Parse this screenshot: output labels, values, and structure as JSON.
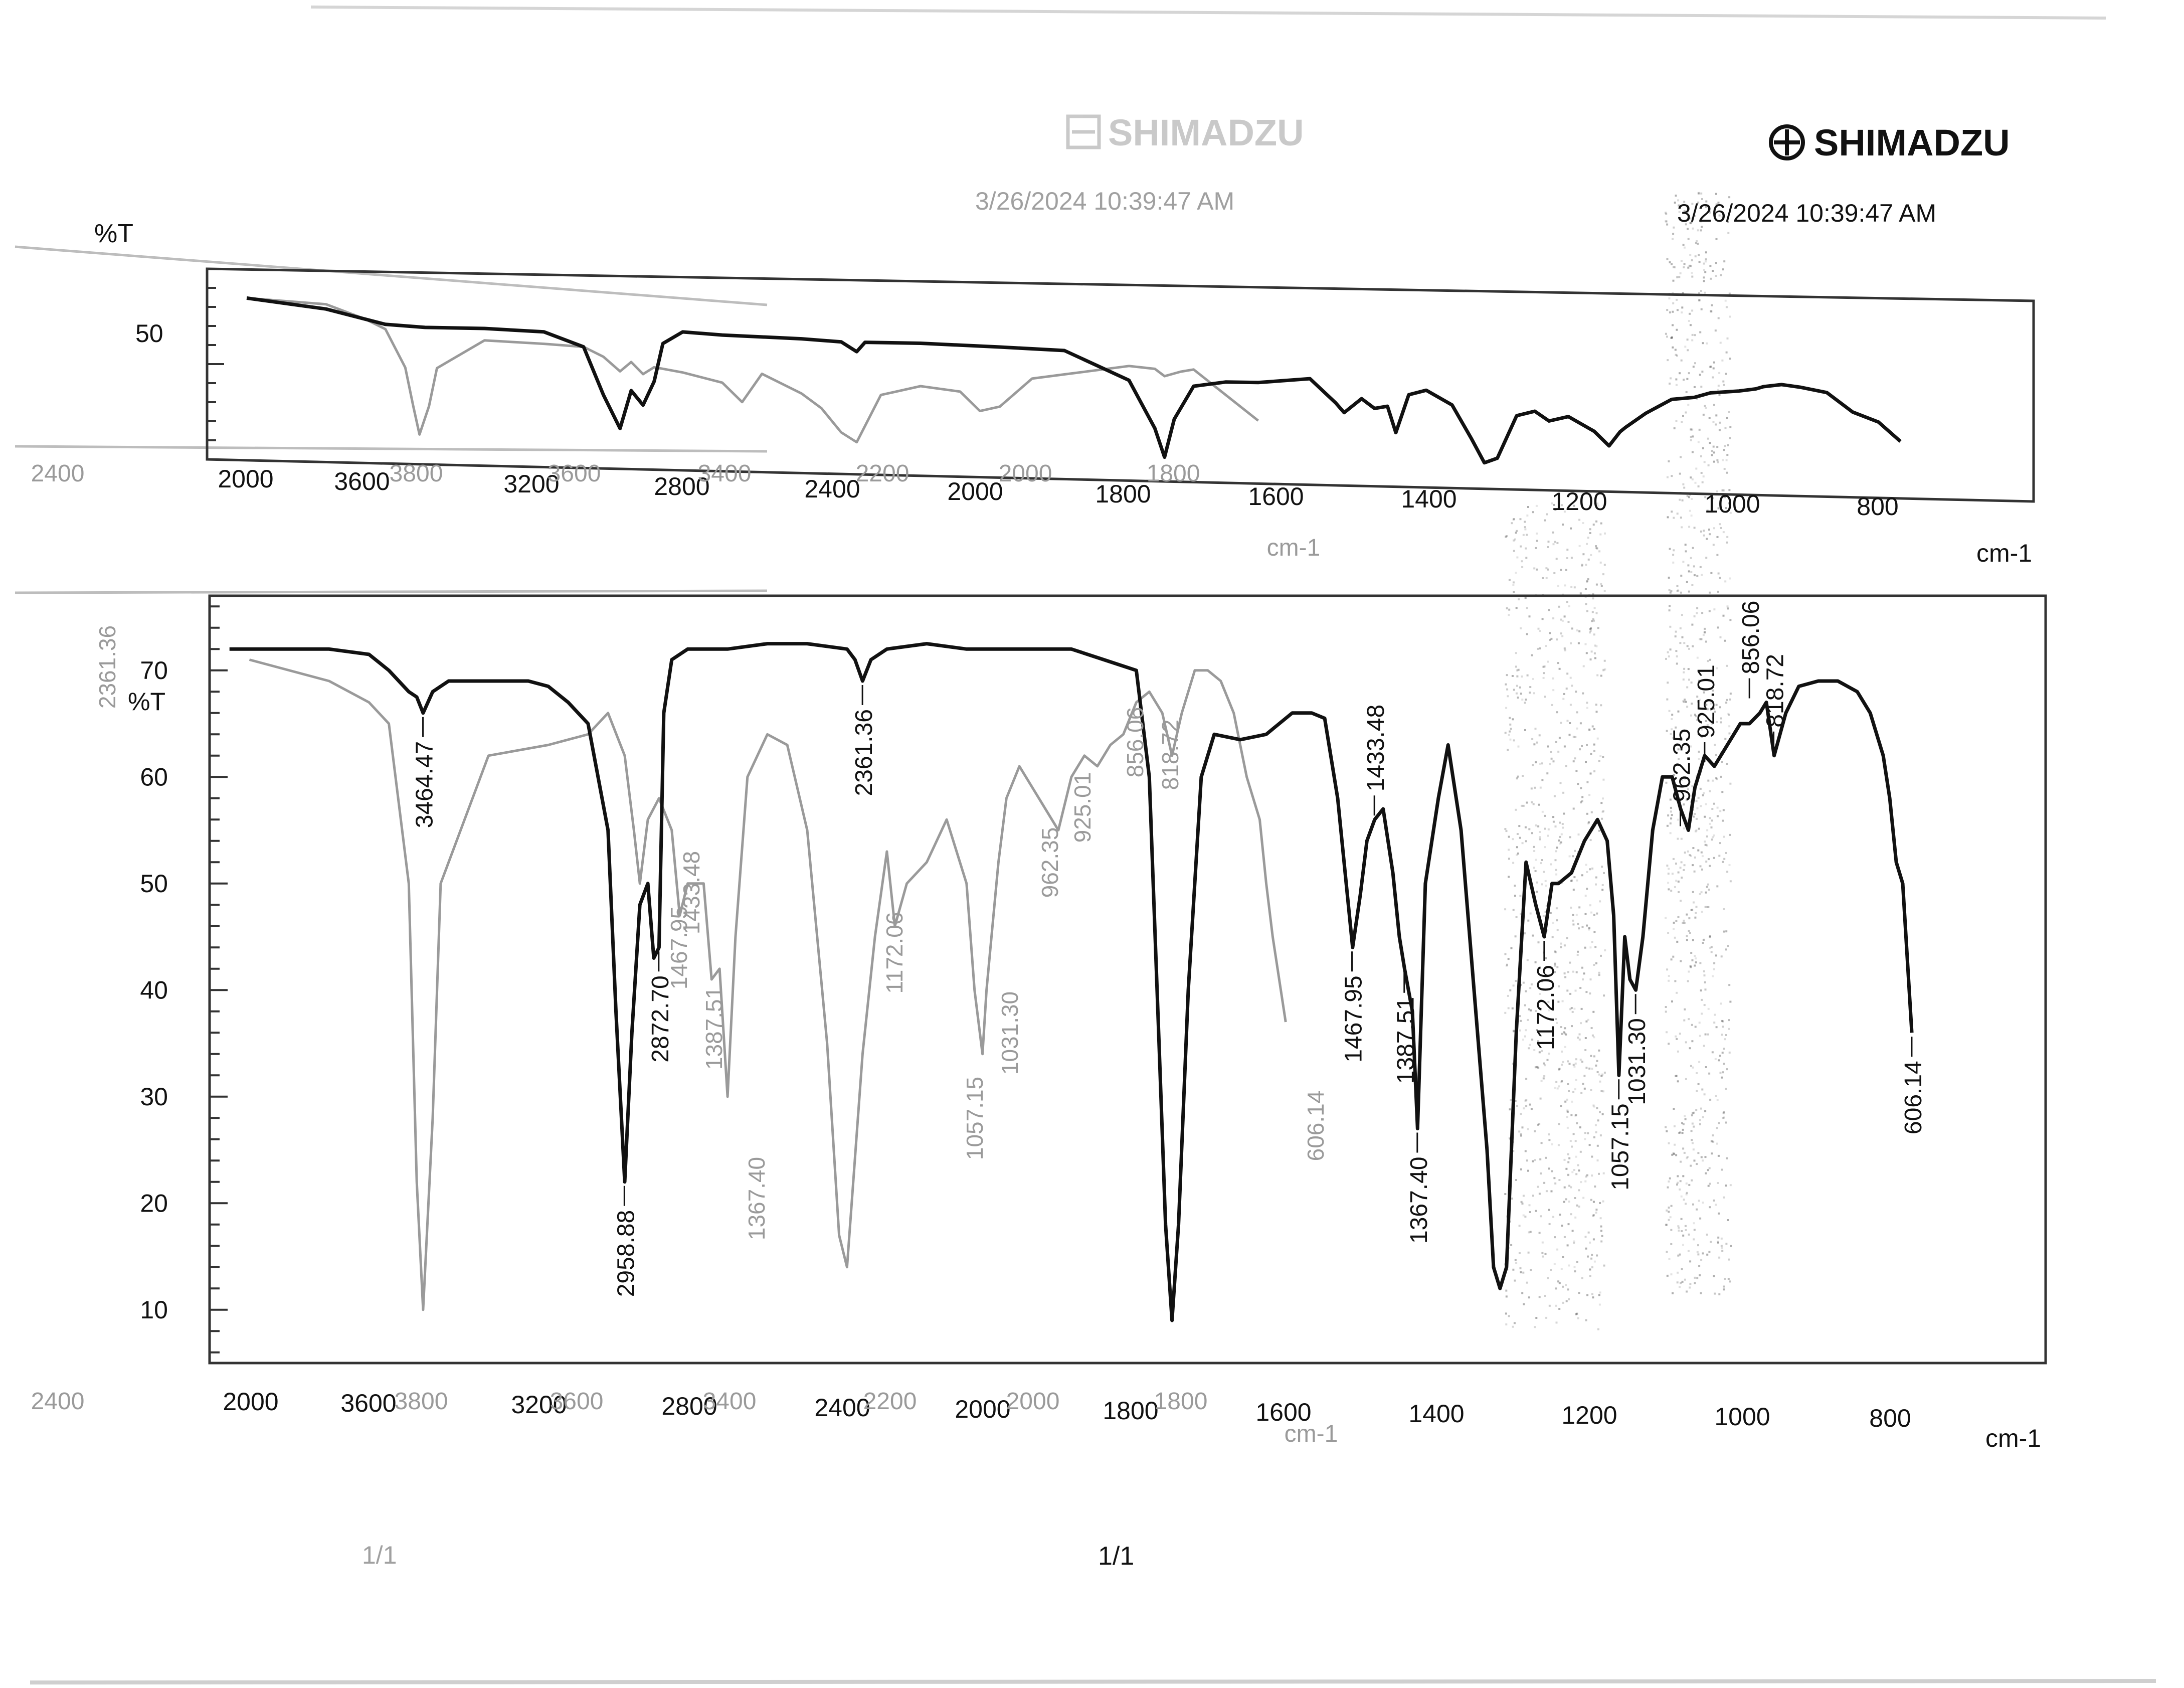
{
  "brand": {
    "logo_text": "SHIMADZU",
    "ghost_logo_text": "SHIMADZU",
    "timestamp": "3/26/2024 10:39:47 AM",
    "ghost_timestamp": "3/26/2024 10:39:47 AM"
  },
  "footer": {
    "page_number": "1/1",
    "ghost_page_number": "1/1"
  },
  "colors": {
    "ink": "#111111",
    "ghost_ink": "#9a9a9a",
    "frame": "#333333",
    "paper": "#ffffff"
  },
  "chart_data": [
    {
      "type": "line",
      "panel": "top",
      "ylabel": "%T",
      "xlabel": "cm-1",
      "y_tick_labels": [
        "50"
      ],
      "x_tick_labels": [
        "2000",
        "3600",
        "3200",
        "2800",
        "2400",
        "2000",
        "1800",
        "1600",
        "1400",
        "1200",
        "1000",
        "800"
      ],
      "ghost_x_tick_labels": [
        "2400",
        "3800",
        "3600",
        "3400",
        "2200",
        "2000",
        "1800",
        "cm-1"
      ],
      "series": [
        {
          "ink": "dark",
          "x": [
            3900,
            3700,
            3550,
            3450,
            3300,
            3150,
            3050,
            3000,
            2958,
            2930,
            2900,
            2872,
            2850,
            2800,
            2700,
            2500,
            2400,
            2361,
            2340,
            2200,
            2000,
            1900,
            1800,
            1760,
            1745,
            1730,
            1700,
            1650,
            1600,
            1520,
            1480,
            1467,
            1440,
            1420,
            1400,
            1387,
            1367,
            1340,
            1300,
            1270,
            1250,
            1230,
            1200,
            1172,
            1150,
            1120,
            1080,
            1057,
            1040,
            1031,
            1000,
            960,
            925,
            900,
            856,
            830,
            818,
            790,
            760,
            720,
            680,
            640,
            606
          ],
          "y": [
            64,
            62,
            59,
            58.5,
            58.5,
            58,
            55,
            45,
            38,
            46,
            43,
            48,
            56,
            58.5,
            58,
            57.5,
            57,
            55,
            57,
            57,
            56.5,
            56,
            50,
            40,
            34,
            42,
            49,
            50,
            50,
            51,
            46,
            44,
            47,
            45,
            45.5,
            40,
            48,
            49,
            46,
            39,
            34,
            35,
            44,
            45,
            43,
            44,
            41,
            38,
            41,
            42,
            45,
            48,
            48.5,
            49.5,
            50,
            50.5,
            51,
            51.5,
            51,
            50,
            46,
            44,
            40
          ]
        },
        {
          "ink": "ghost",
          "x": [
            3900,
            3700,
            3600,
            3550,
            3500,
            3480,
            3464,
            3440,
            3420,
            3300,
            3150,
            3050,
            3000,
            2958,
            2930,
            2900,
            2872,
            2800,
            2700,
            2650,
            2600,
            2500,
            2450,
            2400,
            2361,
            2300,
            2200,
            2100,
            2050,
            2000,
            1950,
            1900,
            1850,
            1800,
            1760,
            1745,
            1720,
            1700,
            1600
          ],
          "y": [
            64,
            63,
            60,
            58,
            50,
            42,
            36,
            42,
            50,
            56,
            55.5,
            55,
            53,
            50,
            52,
            49.5,
            51,
            50,
            48,
            44,
            50,
            46,
            43,
            38,
            36,
            46,
            48,
            47,
            43,
            44,
            50,
            51,
            52,
            53,
            52.5,
            51,
            52,
            52.5,
            42
          ]
        }
      ]
    },
    {
      "type": "line",
      "panel": "bottom",
      "ylabel": "%T",
      "xlabel": "cm-1",
      "ylim": [
        5,
        77
      ],
      "y_tick_labels": [
        "70",
        "60",
        "50",
        "40",
        "30",
        "20",
        "10"
      ],
      "x_tick_labels": [
        "2000",
        "3600",
        "3200",
        "2800",
        "2400",
        "2000",
        "1800",
        "1600",
        "1400",
        "1200",
        "1000",
        "800"
      ],
      "ghost_x_tick_labels": [
        "2400",
        "3800",
        "3600",
        "3400",
        "2200",
        "2000",
        "1800",
        "cm-1"
      ],
      "series": [
        {
          "ink": "dark",
          "x": [
            3950,
            3800,
            3700,
            3600,
            3550,
            3500,
            3480,
            3464,
            3440,
            3400,
            3300,
            3200,
            3150,
            3100,
            3050,
            3000,
            2980,
            2958,
            2940,
            2920,
            2900,
            2885,
            2872,
            2860,
            2840,
            2800,
            2700,
            2600,
            2500,
            2400,
            2380,
            2361,
            2340,
            2300,
            2200,
            2100,
            2000,
            1950,
            1900,
            1850,
            1800,
            1780,
            1765,
            1755,
            1745,
            1735,
            1720,
            1700,
            1680,
            1640,
            1600,
            1560,
            1530,
            1510,
            1490,
            1467,
            1455,
            1445,
            1433,
            1420,
            1405,
            1395,
            1387,
            1375,
            1367,
            1355,
            1335,
            1320,
            1300,
            1280,
            1260,
            1250,
            1240,
            1230,
            1215,
            1200,
            1185,
            1172,
            1160,
            1150,
            1130,
            1110,
            1090,
            1075,
            1065,
            1057,
            1048,
            1040,
            1031,
            1020,
            1005,
            990,
            975,
            962,
            950,
            940,
            925,
            910,
            890,
            870,
            856,
            840,
            830,
            818,
            800,
            780,
            750,
            720,
            690,
            670,
            650,
            640,
            630,
            620,
            606
          ],
          "y": [
            72,
            72,
            72,
            71.5,
            70,
            68,
            67.5,
            66,
            68,
            69,
            69,
            69,
            68.5,
            67,
            65,
            55,
            38,
            22,
            36,
            48,
            50,
            43,
            44,
            66,
            71,
            72,
            72,
            72.5,
            72.5,
            72,
            71,
            69,
            71,
            72,
            72.5,
            72,
            72,
            72,
            72,
            71,
            70,
            60,
            35,
            18,
            9,
            18,
            40,
            60,
            64,
            63.5,
            64,
            66,
            66,
            65.5,
            58,
            44,
            49,
            54,
            56,
            57,
            51,
            45,
            42,
            38,
            27,
            50,
            58,
            63,
            55,
            40,
            25,
            14,
            12,
            14,
            36,
            52,
            48,
            45,
            50,
            50,
            51,
            54,
            56,
            54,
            47,
            32,
            45,
            41,
            40,
            45,
            55,
            60,
            60,
            57,
            55,
            59,
            62,
            61,
            63,
            65,
            65,
            66,
            67,
            62,
            66,
            68.5,
            69,
            69,
            68,
            66,
            62,
            58,
            52,
            50,
            36
          ]
        },
        {
          "ink": "ghost",
          "x": [
            3900,
            3700,
            3600,
            3550,
            3500,
            3480,
            3464,
            3440,
            3420,
            3300,
            3150,
            3050,
            3000,
            2958,
            2935,
            2920,
            2900,
            2872,
            2840,
            2820,
            2800,
            2760,
            2740,
            2720,
            2700,
            2680,
            2650,
            2600,
            2550,
            2500,
            2450,
            2420,
            2400,
            2361,
            2330,
            2300,
            2280,
            2250,
            2200,
            2150,
            2100,
            2080,
            2060,
            2050,
            2040,
            2020,
            2000,
            1980,
            1950,
            1930,
            1920,
            1900,
            1880,
            1860,
            1840,
            1820,
            1800,
            1780,
            1760,
            1745,
            1730,
            1710,
            1690,
            1670,
            1650,
            1630,
            1610,
            1600,
            1590,
            1570
          ],
          "y": [
            71,
            69,
            67,
            65,
            50,
            22,
            10,
            28,
            50,
            62,
            63,
            64,
            66,
            62,
            55,
            50,
            56,
            58,
            55,
            47,
            50,
            50,
            41,
            42,
            30,
            45,
            60,
            64,
            63,
            55,
            35,
            17,
            14,
            34,
            45,
            53,
            46,
            50,
            52,
            56,
            50,
            40,
            34,
            40,
            44,
            52,
            58,
            61,
            58,
            56,
            55,
            60,
            62,
            61,
            63,
            64,
            67,
            68,
            66,
            62,
            66,
            70,
            70,
            69,
            66,
            60,
            56,
            50,
            45,
            37
          ]
        }
      ],
      "peak_labels": [
        {
          "x": 3464.47,
          "y": 66,
          "label": "3464.47"
        },
        {
          "x": 2958.88,
          "y": 22,
          "label": "2958.88"
        },
        {
          "x": 2872.7,
          "y": 44,
          "label": "2872.70"
        },
        {
          "x": 2361.36,
          "y": 69,
          "label": "2361.36"
        },
        {
          "x": 1467.95,
          "y": 44,
          "label": "1467.95"
        },
        {
          "x": 1433.48,
          "y": 56,
          "label": "1433.48"
        },
        {
          "x": 1387.51,
          "y": 42,
          "label": "1387.51"
        },
        {
          "x": 1367.4,
          "y": 27,
          "label": "1367.40"
        },
        {
          "x": 1172.06,
          "y": 45,
          "label": "1172.06"
        },
        {
          "x": 1057.15,
          "y": 32,
          "label": "1057.15"
        },
        {
          "x": 1031.3,
          "y": 40,
          "label": "1031.30"
        },
        {
          "x": 962.35,
          "y": 55,
          "label": "962.35"
        },
        {
          "x": 925.01,
          "y": 61,
          "label": "925.01"
        },
        {
          "x": 856.06,
          "y": 67,
          "label": "856.06"
        },
        {
          "x": 818.72,
          "y": 62,
          "label": "818.72"
        },
        {
          "x": 606.14,
          "y": 36,
          "label": "606.14"
        }
      ],
      "ghost_peak_labels": [
        "2361.36",
        "1467.95",
        "1433.48",
        "1387.51",
        "1367.40",
        "1172.06",
        "1057.15",
        "1031.30",
        "962.35",
        "925.01",
        "856.06",
        "818.72",
        "606.14"
      ]
    }
  ]
}
